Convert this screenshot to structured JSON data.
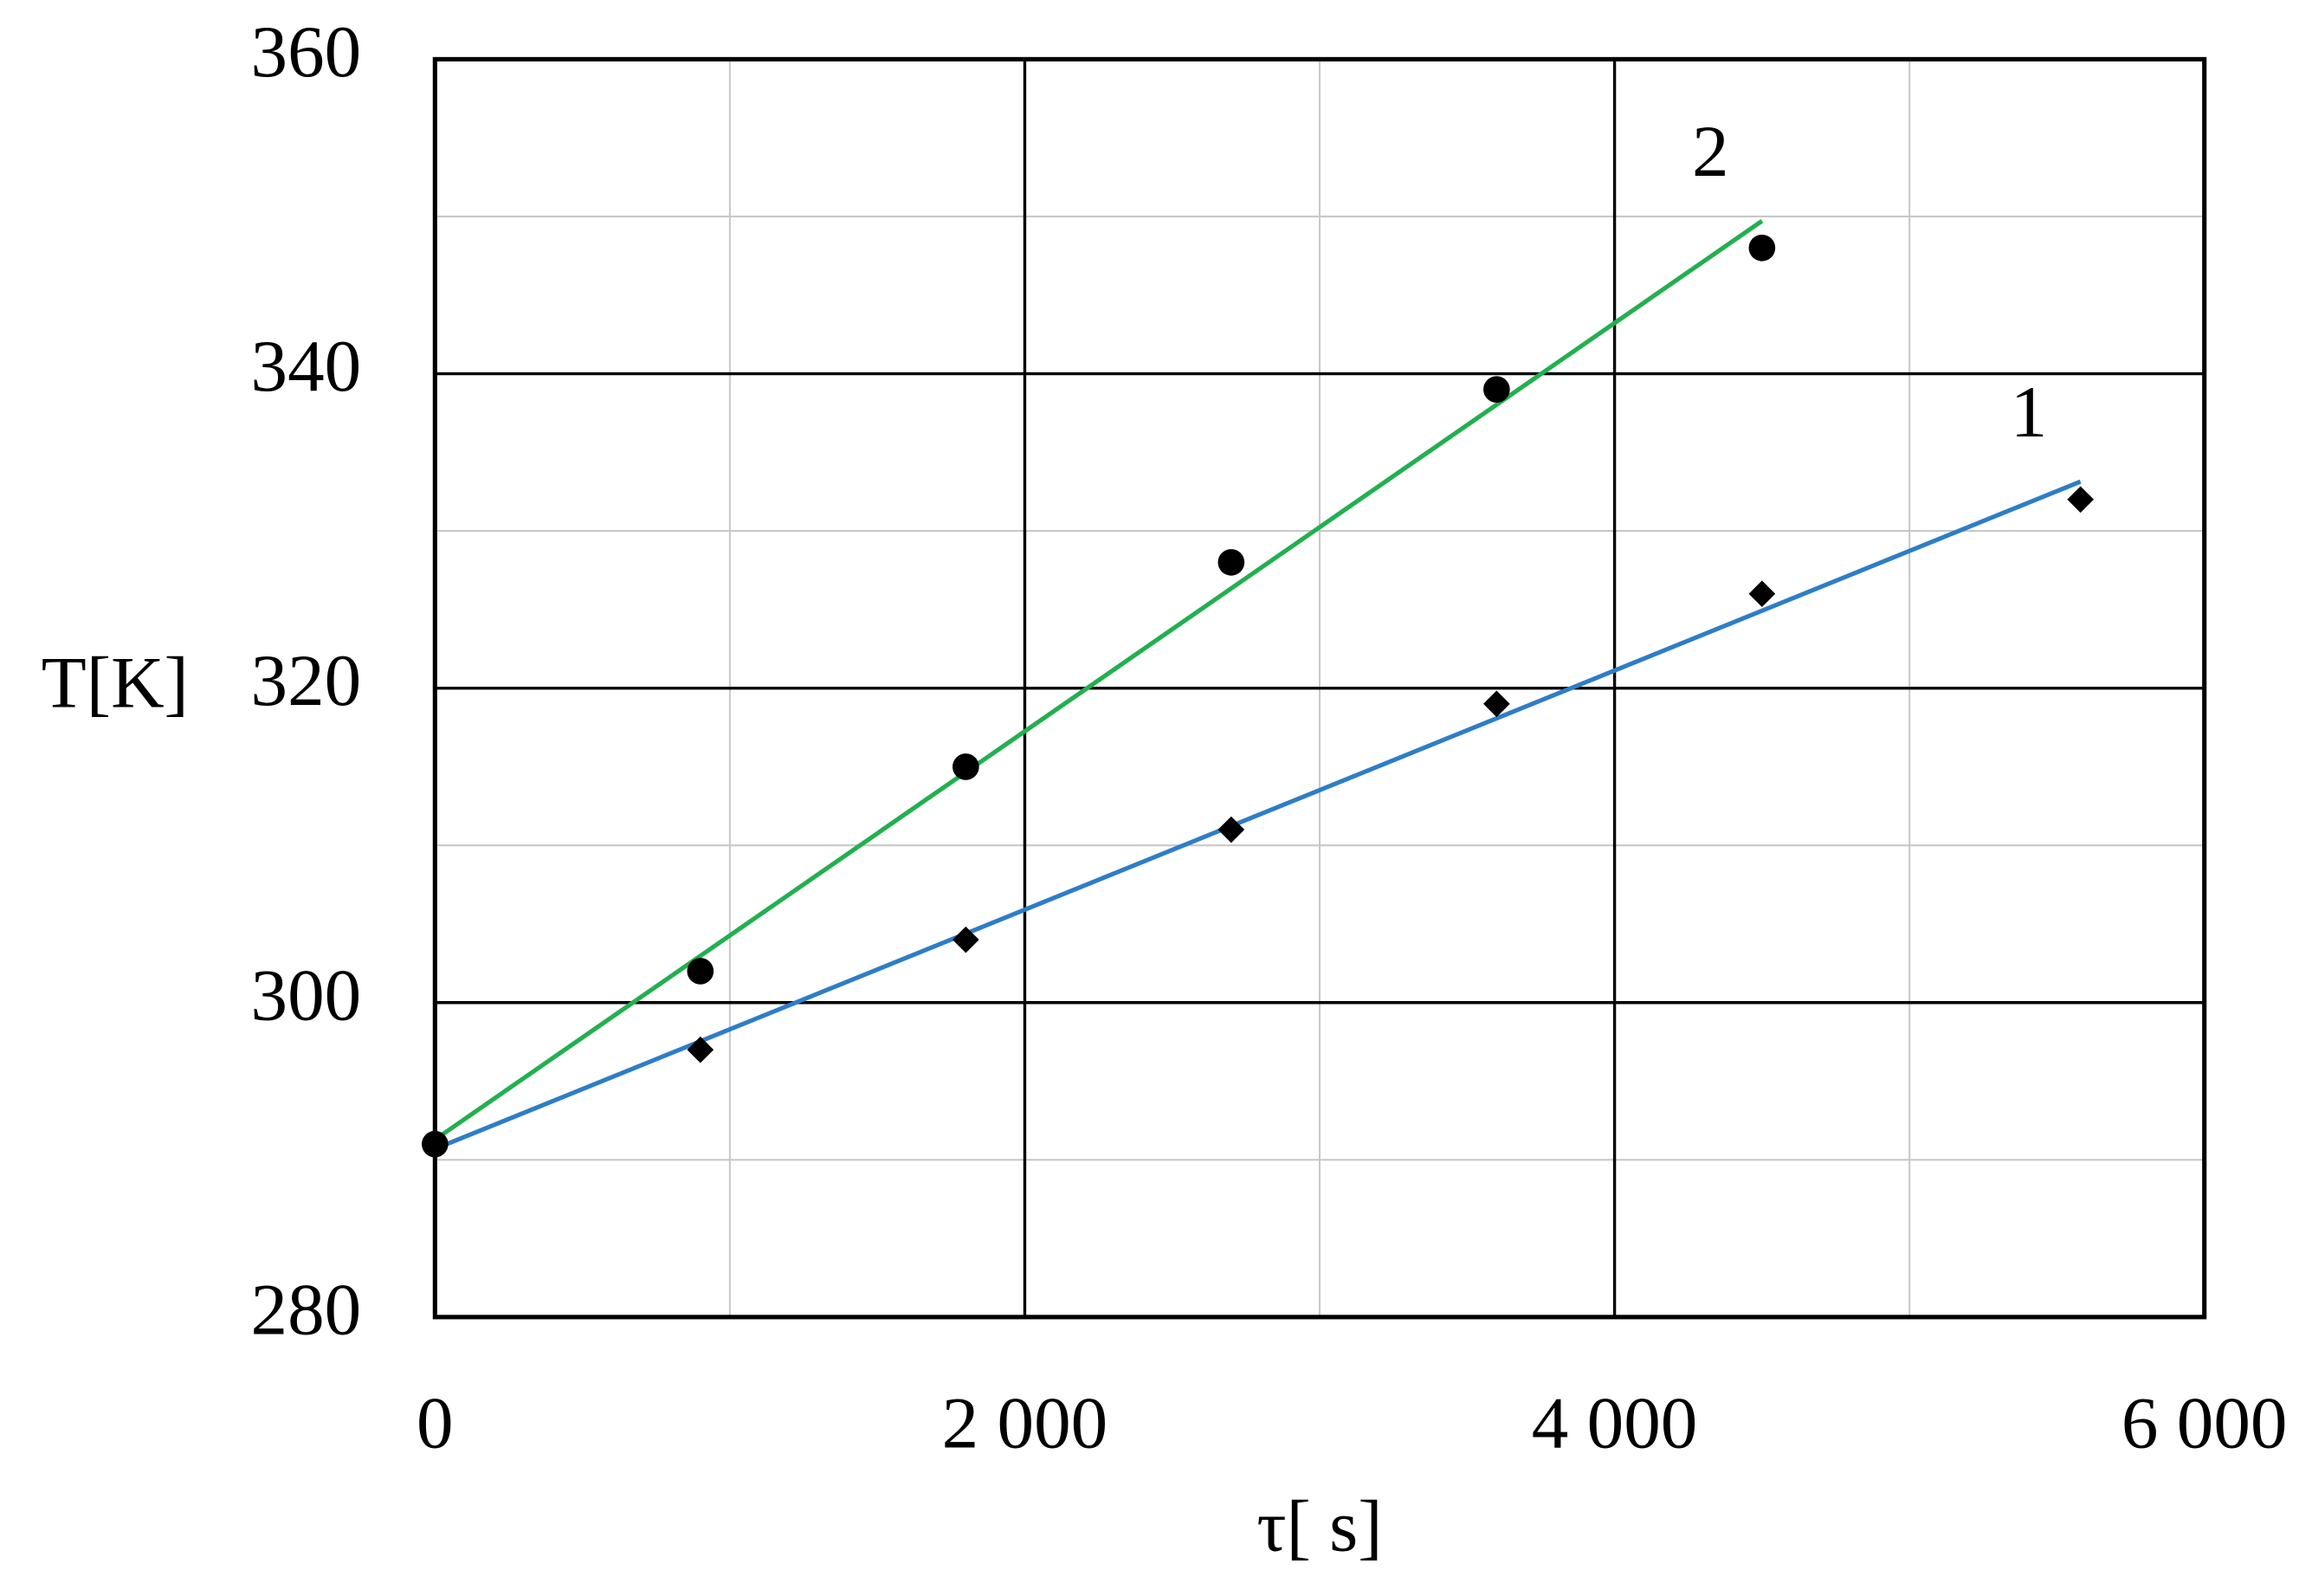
{
  "chart_data": {
    "type": "scatter",
    "x_label": "τ[ s]",
    "y_label": "T[K]",
    "xlim": [
      0,
      6000
    ],
    "ylim": [
      280,
      360
    ],
    "xticks": [
      0,
      {
        "value": 2000,
        "label": "2 000"
      },
      {
        "value": 4000,
        "label": "4 000"
      },
      {
        "value": 6000,
        "label": "6 000"
      }
    ],
    "yticks": [
      280,
      300,
      320,
      340,
      360
    ],
    "xminorticks": [
      1000,
      3000,
      5000
    ],
    "yminorticks": [
      290,
      310,
      330,
      350
    ],
    "grid": true,
    "trendline": true,
    "series": [
      {
        "name": "1",
        "color": "#2e7dc6",
        "marker": "diamond",
        "marker_color": "#000000",
        "x": [
          0,
          900,
          1800,
          2700,
          3600,
          4500,
          5580
        ],
        "values": [
          291,
          297,
          304,
          311,
          319,
          326,
          332
        ]
      },
      {
        "name": "2",
        "color": "#22b04f",
        "marker": "circle",
        "marker_color": "#000000",
        "x": [
          0,
          900,
          1800,
          2700,
          3600,
          4500
        ],
        "values": [
          291,
          302,
          315,
          328,
          339,
          348
        ]
      }
    ]
  }
}
